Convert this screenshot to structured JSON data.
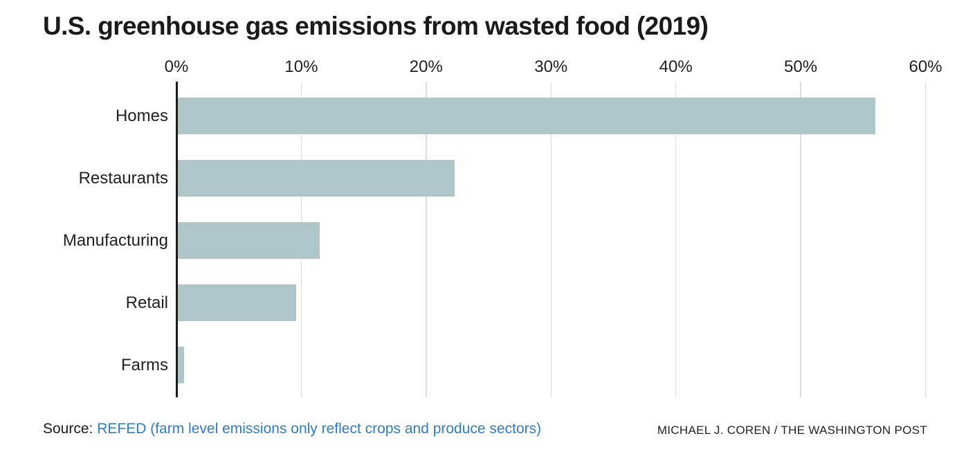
{
  "title": "U.S. greenhouse gas emissions from wasted food (2019)",
  "chart_data": {
    "type": "bar",
    "orientation": "horizontal",
    "title": "U.S. greenhouse gas emissions from wasted food (2019)",
    "categories": [
      "Homes",
      "Restaurants",
      "Manufacturing",
      "Retail",
      "Farms"
    ],
    "values": [
      56,
      22.3,
      11.5,
      9.6,
      0.6
    ],
    "unit": "percent",
    "xlabel": "",
    "ylabel": "",
    "xlim": [
      0,
      60
    ],
    "x_tick_values": [
      0,
      10,
      20,
      30,
      40,
      50,
      60
    ],
    "x_tick_labels": [
      "0%",
      "10%",
      "20%",
      "30%",
      "40%",
      "50%",
      "60%"
    ],
    "grid": true,
    "legend": "none",
    "bar_color": "#aec5ca",
    "axis_color": "#1a1a1a",
    "gridline_color": "#dcdcdc"
  },
  "footer": {
    "source_prefix": "Source:",
    "source_link_text": "REFED (farm level emissions only reflect crops and produce sectors)",
    "credit": "MICHAEL J. COREN / THE WASHINGTON POST"
  },
  "colors": {
    "link_blue": "#2e7dc1",
    "text_dark": "#1a1a1a"
  }
}
